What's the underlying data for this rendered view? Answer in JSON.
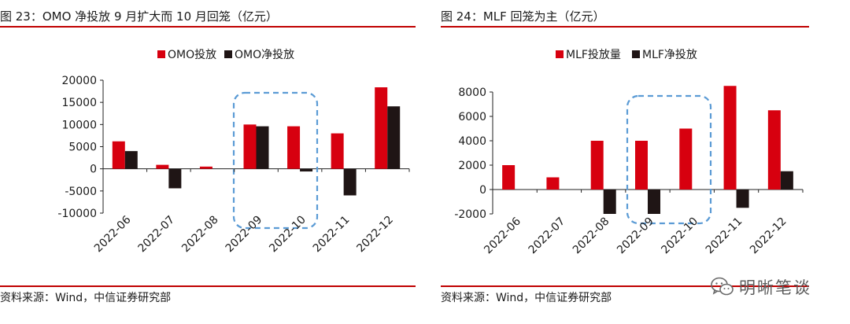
{
  "watermark": {
    "text": "明晰笔谈",
    "icon": "wechat-icon"
  },
  "colors": {
    "accent_red": "#d7000f",
    "dark": "#1f1515",
    "frame_red": "#c00000",
    "highlight": "#5b9bd5"
  },
  "charts": [
    {
      "figure_title": "图 23：OMO 净投放 9 月扩大而 10 月回笼（亿元）",
      "source": "资料来源：Wind，中信证券研究部",
      "highlight_categories": [
        "2022-09",
        "2022-10"
      ]
    },
    {
      "figure_title": "图 24：MLF 回笼为主（亿元）",
      "source": "资料来源：Wind，中信证券研究部",
      "highlight_categories": [
        "2022-09",
        "2022-10"
      ]
    }
  ],
  "chart_data": [
    {
      "type": "bar",
      "categories": [
        "2022-06",
        "2022-07",
        "2022-08",
        "2022-09",
        "2022-10",
        "2022-11",
        "2022-12"
      ],
      "series": [
        {
          "name": "OMO投放",
          "color": "#d7000f",
          "values": [
            6200,
            900,
            500,
            10000,
            9600,
            8000,
            18400
          ]
        },
        {
          "name": "OMO净投放",
          "color": "#1f1515",
          "values": [
            4000,
            -4400,
            0,
            9600,
            -600,
            -6000,
            14100
          ]
        }
      ],
      "ylim": [
        -10000,
        20000
      ],
      "yticks": [
        -10000,
        -5000,
        0,
        5000,
        10000,
        15000,
        20000
      ],
      "legend": "top",
      "grid": false
    },
    {
      "type": "bar",
      "categories": [
        "2022-06",
        "2022-07",
        "2022-08",
        "2022-09",
        "2022-10",
        "2022-11",
        "2022-12"
      ],
      "series": [
        {
          "name": "MLF投放量",
          "color": "#d7000f",
          "values": [
            2000,
            1000,
            4000,
            4000,
            5000,
            8500,
            6500
          ]
        },
        {
          "name": "MLF净投放",
          "color": "#1f1515",
          "values": [
            0,
            0,
            -2000,
            -2000,
            0,
            -1500,
            1500
          ]
        }
      ],
      "ylim": [
        -2000,
        8000
      ],
      "yticks": [
        -2000,
        0,
        2000,
        4000,
        6000,
        8000
      ],
      "legend": "top",
      "grid": false
    }
  ]
}
